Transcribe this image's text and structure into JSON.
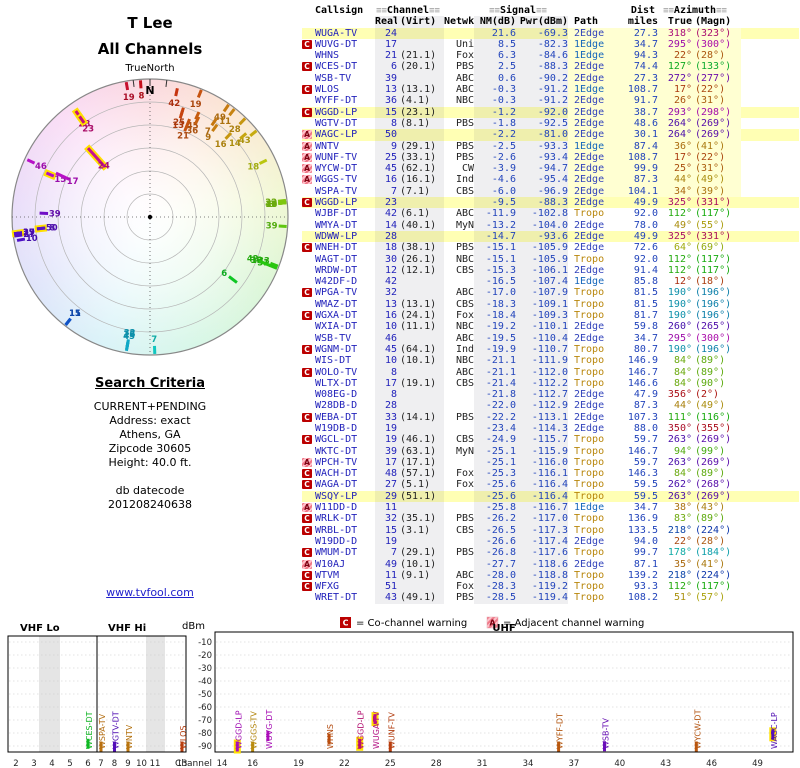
{
  "title": {
    "line1": "T Lee",
    "line2": "All Channels"
  },
  "radar": {
    "true_north": "TrueNorth",
    "north": "N"
  },
  "search_criteria": {
    "heading": "Search Criteria",
    "lines": [
      "CURRENT+PENDING",
      "Address: exact",
      "Athens, GA",
      "Zipcode 30605",
      "Height: 40.0 ft."
    ],
    "db_label": "db datecode",
    "db_value": "201208240638"
  },
  "footer_link": "www.tvfool.com",
  "table": {
    "header": {
      "callsign": "Callsign",
      "channel": "Channel",
      "signal": "Signal",
      "dist": "Dist",
      "azimuth": "Azimuth",
      "real": "Real",
      "virt": "(Virt)",
      "netwk": "Netwk",
      "nm": "NM(dB)",
      "pwr": "Pwr(dBm)",
      "path": "Path",
      "miles": "miles",
      "true": "True",
      "magn": "(Magn)"
    },
    "rows": [
      {
        "warn": "",
        "call": "WUGA-TV",
        "real": 24,
        "virt": "",
        "net": "",
        "nm": 21.6,
        "pwr": -69.3,
        "path": "2Edge",
        "miles": 27.3,
        "az": 318,
        "magn": 323,
        "pending": true
      },
      {
        "warn": "C",
        "call": "WUVG-DT",
        "real": 17,
        "virt": "",
        "net": "Uni",
        "nm": 8.5,
        "pwr": -82.3,
        "path": "1Edge",
        "miles": 34.7,
        "az": 295,
        "magn": 300,
        "pending": false
      },
      {
        "warn": "",
        "call": "WHNS",
        "real": 21,
        "virt": "(21.1)",
        "net": "Fox",
        "nm": 6.3,
        "pwr": -84.6,
        "path": "1Edge",
        "miles": 94.3,
        "az": 22,
        "magn": 28,
        "pending": false
      },
      {
        "warn": "C",
        "call": "WCES-DT",
        "real": 6,
        "virt": "(20.1)",
        "net": "PBS",
        "nm": 2.5,
        "pwr": -88.3,
        "path": "2Edge",
        "miles": 74.4,
        "az": 127,
        "magn": 133,
        "pending": false
      },
      {
        "warn": "",
        "call": "WSB-TV",
        "real": 39,
        "virt": "",
        "net": "ABC",
        "nm": 0.6,
        "pwr": -90.2,
        "path": "2Edge",
        "miles": 27.3,
        "az": 272,
        "magn": 277,
        "pending": false
      },
      {
        "warn": "C",
        "call": "WLOS",
        "real": 13,
        "virt": "(13.1)",
        "net": "ABC",
        "nm": -0.3,
        "pwr": -91.2,
        "path": "1Edge",
        "miles": 108.7,
        "az": 17,
        "magn": 22,
        "pending": false
      },
      {
        "warn": "",
        "call": "WYFF-DT",
        "real": 36,
        "virt": "(4.1)",
        "net": "NBC",
        "nm": -0.3,
        "pwr": -91.2,
        "path": "2Edge",
        "miles": 91.7,
        "az": 26,
        "magn": 31,
        "pending": false
      },
      {
        "warn": "C",
        "call": "WGGD-LP",
        "real": 15,
        "virt": "(23.1)",
        "net": "",
        "nm": -1.2,
        "pwr": -92.0,
        "path": "2Edge",
        "miles": 38.7,
        "az": 293,
        "magn": 298,
        "pending": true
      },
      {
        "warn": "",
        "call": "WGTV-DT",
        "real": 8,
        "virt": "(8.1)",
        "net": "PBS",
        "nm": -1.8,
        "pwr": -92.5,
        "path": "2Edge",
        "miles": 48.6,
        "az": 264,
        "magn": 269,
        "pending": false
      },
      {
        "warn": "A",
        "call": "WAGC-LP",
        "real": 50,
        "virt": "",
        "net": "",
        "nm": -2.2,
        "pwr": -81.0,
        "path": "2Edge",
        "miles": 30.1,
        "az": 264,
        "magn": 269,
        "pending": true
      },
      {
        "warn": "A",
        "call": "WNTV",
        "real": 9,
        "virt": "(29.1)",
        "net": "PBS",
        "nm": -2.5,
        "pwr": -93.3,
        "path": "1Edge",
        "miles": 87.4,
        "az": 36,
        "magn": 41,
        "pending": false
      },
      {
        "warn": "A",
        "call": "WUNF-TV",
        "real": 25,
        "virt": "(33.1)",
        "net": "PBS",
        "nm": -2.6,
        "pwr": -93.4,
        "path": "2Edge",
        "miles": 108.7,
        "az": 17,
        "magn": 22,
        "pending": false
      },
      {
        "warn": "A",
        "call": "WYCW-DT",
        "real": 45,
        "virt": "(62.1)",
        "net": "CW",
        "nm": -3.9,
        "pwr": -94.7,
        "path": "2Edge",
        "miles": 99.9,
        "az": 25,
        "magn": 31,
        "pending": false
      },
      {
        "warn": "A",
        "call": "WGGS-TV",
        "real": 16,
        "virt": "(16.1)",
        "net": "Ind",
        "nm": -4.6,
        "pwr": -95.4,
        "path": "2Edge",
        "miles": 87.3,
        "az": 44,
        "magn": 49,
        "pending": false
      },
      {
        "warn": "",
        "call": "WSPA-TV",
        "real": 7,
        "virt": "(7.1)",
        "net": "CBS",
        "nm": -6.0,
        "pwr": -96.9,
        "path": "2Edge",
        "miles": 104.1,
        "az": 34,
        "magn": 39,
        "pending": false
      },
      {
        "warn": "C",
        "call": "WGGD-LP",
        "real": 23,
        "virt": "",
        "net": "",
        "nm": -9.5,
        "pwr": -88.3,
        "path": "2Edge",
        "miles": 49.9,
        "az": 325,
        "magn": 331,
        "pending": true
      },
      {
        "warn": "",
        "call": "WJBF-DT",
        "real": 42,
        "virt": "(6.1)",
        "net": "ABC",
        "nm": -11.9,
        "pwr": -102.8,
        "path": "Tropo",
        "miles": 92.0,
        "az": 112,
        "magn": 117,
        "pending": false
      },
      {
        "warn": "",
        "call": "WMYA-DT",
        "real": 14,
        "virt": "(40.1)",
        "net": "MyN",
        "nm": -13.2,
        "pwr": -104.0,
        "path": "2Edge",
        "miles": 78.0,
        "az": 49,
        "magn": 55,
        "pending": false
      },
      {
        "warn": "",
        "call": "WDWW-LP",
        "real": 28,
        "virt": "",
        "net": "",
        "nm": -14.7,
        "pwr": -93.6,
        "path": "2Edge",
        "miles": 49.9,
        "az": 325,
        "magn": 331,
        "pending": true
      },
      {
        "warn": "C",
        "call": "WNEH-DT",
        "real": 18,
        "virt": "(38.1)",
        "net": "PBS",
        "nm": -15.1,
        "pwr": -105.9,
        "path": "2Edge",
        "miles": 72.6,
        "az": 64,
        "magn": 69,
        "pending": false
      },
      {
        "warn": "",
        "call": "WAGT-DT",
        "real": 30,
        "virt": "(26.1)",
        "net": "NBC",
        "nm": -15.1,
        "pwr": -105.9,
        "path": "Tropo",
        "miles": 92.0,
        "az": 112,
        "magn": 117,
        "pending": false
      },
      {
        "warn": "",
        "call": "WRDW-DT",
        "real": 12,
        "virt": "(12.1)",
        "net": "CBS",
        "nm": -15.3,
        "pwr": -106.1,
        "path": "2Edge",
        "miles": 91.4,
        "az": 112,
        "magn": 117,
        "pending": false
      },
      {
        "warn": "",
        "call": "W42DF-D",
        "real": 42,
        "virt": "",
        "net": "",
        "nm": -16.5,
        "pwr": -107.4,
        "path": "1Edge",
        "miles": 85.8,
        "az": 12,
        "magn": 18,
        "pending": false
      },
      {
        "warn": "C",
        "call": "WPGA-TV",
        "real": 32,
        "virt": "",
        "net": "ABC",
        "nm": -17.0,
        "pwr": -107.9,
        "path": "Tropo",
        "miles": 81.5,
        "az": 190,
        "magn": 196,
        "pending": false
      },
      {
        "warn": "",
        "call": "WMAZ-DT",
        "real": 13,
        "virt": "(13.1)",
        "net": "CBS",
        "nm": -18.3,
        "pwr": -109.1,
        "path": "Tropo",
        "miles": 81.5,
        "az": 190,
        "magn": 196,
        "pending": false
      },
      {
        "warn": "C",
        "call": "WGXA-DT",
        "real": 16,
        "virt": "(24.1)",
        "net": "Fox",
        "nm": -18.4,
        "pwr": -109.3,
        "path": "Tropo",
        "miles": 81.7,
        "az": 190,
        "magn": 196,
        "pending": false
      },
      {
        "warn": "",
        "call": "WXIA-DT",
        "real": 10,
        "virt": "(11.1)",
        "net": "NBC",
        "nm": -19.2,
        "pwr": -110.1,
        "path": "2Edge",
        "miles": 59.8,
        "az": 260,
        "magn": 265,
        "pending": false
      },
      {
        "warn": "",
        "call": "WSB-TV",
        "real": 46,
        "virt": "",
        "net": "ABC",
        "nm": -19.5,
        "pwr": -110.4,
        "path": "2Edge",
        "miles": 34.7,
        "az": 295,
        "magn": 300,
        "pending": false
      },
      {
        "warn": "C",
        "call": "WGNM-DT",
        "real": 45,
        "virt": "(64.1)",
        "net": "Ind",
        "nm": -19.9,
        "pwr": -110.7,
        "path": "Tropo",
        "miles": 80.7,
        "az": 190,
        "magn": 196,
        "pending": false
      },
      {
        "warn": "",
        "call": "WIS-DT",
        "real": 10,
        "virt": "(10.1)",
        "net": "NBC",
        "nm": -21.1,
        "pwr": -111.9,
        "path": "Tropo",
        "miles": 146.9,
        "az": 84,
        "magn": 89,
        "pending": false
      },
      {
        "warn": "C",
        "call": "WOLO-TV",
        "real": 8,
        "virt": "",
        "net": "ABC",
        "nm": -21.1,
        "pwr": -112.0,
        "path": "Tropo",
        "miles": 146.7,
        "az": 84,
        "magn": 89,
        "pending": false
      },
      {
        "warn": "",
        "call": "WLTX-DT",
        "real": 17,
        "virt": "(19.1)",
        "net": "CBS",
        "nm": -21.4,
        "pwr": -112.2,
        "path": "Tropo",
        "miles": 146.6,
        "az": 84,
        "magn": 90,
        "pending": false
      },
      {
        "warn": "",
        "call": "W08EG-D",
        "real": 8,
        "virt": "",
        "net": "",
        "nm": -21.8,
        "pwr": -112.7,
        "path": "2Edge",
        "miles": 47.9,
        "az": 356,
        "magn": 2,
        "pending": false
      },
      {
        "warn": "",
        "call": "W28DB-D",
        "real": 28,
        "virt": "",
        "net": "",
        "nm": -22.0,
        "pwr": -112.9,
        "path": "2Edge",
        "miles": 87.3,
        "az": 44,
        "magn": 49,
        "pending": false
      },
      {
        "warn": "C",
        "call": "WEBA-DT",
        "real": 33,
        "virt": "(14.1)",
        "net": "PBS",
        "nm": -22.2,
        "pwr": -113.1,
        "path": "2Edge",
        "miles": 107.3,
        "az": 111,
        "magn": 116,
        "pending": false
      },
      {
        "warn": "",
        "call": "W19DB-D",
        "real": 19,
        "virt": "",
        "net": "",
        "nm": -23.4,
        "pwr": -114.3,
        "path": "2Edge",
        "miles": 88.0,
        "az": 350,
        "magn": 355,
        "pending": false
      },
      {
        "warn": "C",
        "call": "WGCL-DT",
        "real": 19,
        "virt": "(46.1)",
        "net": "CBS",
        "nm": -24.9,
        "pwr": -115.7,
        "path": "Tropo",
        "miles": 59.7,
        "az": 263,
        "magn": 269,
        "pending": false
      },
      {
        "warn": "",
        "call": "WKTC-DT",
        "real": 39,
        "virt": "(63.1)",
        "net": "MyN",
        "nm": -25.1,
        "pwr": -115.9,
        "path": "Tropo",
        "miles": 146.7,
        "az": 94,
        "magn": 99,
        "pending": false
      },
      {
        "warn": "A",
        "call": "WPCH-TV",
        "real": 17,
        "virt": "(17.1)",
        "net": "",
        "nm": -25.1,
        "pwr": -116.0,
        "path": "Tropo",
        "miles": 59.7,
        "az": 263,
        "magn": 269,
        "pending": false
      },
      {
        "warn": "C",
        "call": "WACH-DT",
        "real": 48,
        "virt": "(57.1)",
        "net": "Fox",
        "nm": -25.3,
        "pwr": -116.1,
        "path": "Tropo",
        "miles": 146.3,
        "az": 84,
        "magn": 89,
        "pending": false
      },
      {
        "warn": "C",
        "call": "WAGA-DT",
        "real": 27,
        "virt": "(5.1)",
        "net": "Fox",
        "nm": -25.6,
        "pwr": -116.4,
        "path": "Tropo",
        "miles": 59.5,
        "az": 262,
        "magn": 268,
        "pending": false
      },
      {
        "warn": "",
        "call": "WSQY-LP",
        "real": 29,
        "virt": "(51.1)",
        "net": "",
        "nm": -25.6,
        "pwr": -116.4,
        "path": "Tropo",
        "miles": 59.5,
        "az": 263,
        "magn": 269,
        "pending": true
      },
      {
        "warn": "A",
        "call": "W11DD-D",
        "real": 11,
        "virt": "",
        "net": "",
        "nm": -25.8,
        "pwr": -116.7,
        "path": "1Edge",
        "miles": 34.7,
        "az": 38,
        "magn": 43,
        "pending": false
      },
      {
        "warn": "C",
        "call": "WRLK-DT",
        "real": 32,
        "virt": "(35.1)",
        "net": "PBS",
        "nm": -26.2,
        "pwr": -117.0,
        "path": "Tropo",
        "miles": 136.9,
        "az": 83,
        "magn": 89,
        "pending": false
      },
      {
        "warn": "C",
        "call": "WRBL-DT",
        "real": 15,
        "virt": "(3.1)",
        "net": "CBS",
        "nm": -26.5,
        "pwr": -117.3,
        "path": "Tropo",
        "miles": 133.5,
        "az": 218,
        "magn": 224,
        "pending": false
      },
      {
        "warn": "",
        "call": "W19DD-D",
        "real": 19,
        "virt": "",
        "net": "",
        "nm": -26.6,
        "pwr": -117.4,
        "path": "2Edge",
        "miles": 94.0,
        "az": 22,
        "magn": 28,
        "pending": false
      },
      {
        "warn": "C",
        "call": "WMUM-DT",
        "real": 7,
        "virt": "(29.1)",
        "net": "PBS",
        "nm": -26.8,
        "pwr": -117.6,
        "path": "Tropo",
        "miles": 99.7,
        "az": 178,
        "magn": 184,
        "pending": false
      },
      {
        "warn": "A",
        "call": "W10AJ",
        "real": 49,
        "virt": "(10.1)",
        "net": "",
        "nm": -27.7,
        "pwr": -118.6,
        "path": "2Edge",
        "miles": 87.1,
        "az": 35,
        "magn": 41,
        "pending": false
      },
      {
        "warn": "C",
        "call": "WTVM",
        "real": 11,
        "virt": "(9.1)",
        "net": "ABC",
        "nm": -28.0,
        "pwr": -118.8,
        "path": "Tropo",
        "miles": 139.2,
        "az": 218,
        "magn": 224,
        "pending": false
      },
      {
        "warn": "C",
        "call": "WFXG",
        "real": 51,
        "virt": "",
        "net": "Fox",
        "nm": -28.3,
        "pwr": -119.2,
        "path": "Tropo",
        "miles": 93.3,
        "az": 112,
        "magn": 117,
        "pending": false
      },
      {
        "warn": "",
        "call": "WRET-DT",
        "real": 43,
        "virt": "(49.1)",
        "net": "PBS",
        "nm": -28.5,
        "pwr": -119.4,
        "path": "Tropo",
        "miles": 108.2,
        "az": 51,
        "magn": 57,
        "pending": false
      }
    ]
  },
  "chart": {
    "legend": [
      {
        "badge": "C",
        "text": "= Co-channel warning"
      },
      {
        "badge": "A",
        "text": "= Adjacent channel warning"
      }
    ],
    "bands": [
      {
        "label": "VHF Lo"
      },
      {
        "label": "VHF Hi"
      },
      {
        "label": "UHF"
      }
    ],
    "dbm_label": "dBm",
    "axis_label": "Channel",
    "dbm_ticks": [
      -10,
      -20,
      -30,
      -40,
      -50,
      -60,
      -70,
      -80,
      -90
    ],
    "vhf_ticks": [
      2,
      3,
      4,
      5,
      6,
      7,
      8,
      9,
      10,
      11,
      13
    ],
    "uhf_ticks": [
      14,
      16,
      19,
      22,
      25,
      28,
      31,
      34,
      37,
      40,
      43,
      46,
      49
    ],
    "label_threshold_nm": -10
  },
  "colors": {
    "blue_text": "#2222bb",
    "path_1edge": "#1566bb",
    "path_2edge": "#3344bb",
    "path_tropo": "#b8860b",
    "pending_row": "#ffffb4",
    "strong_zone": "#ffffd2",
    "warn_c_bg": "#bb0000",
    "warn_a_bg": "#ffc2cb",
    "link": "#2222cc",
    "marker_highlight": "#ffe000"
  }
}
